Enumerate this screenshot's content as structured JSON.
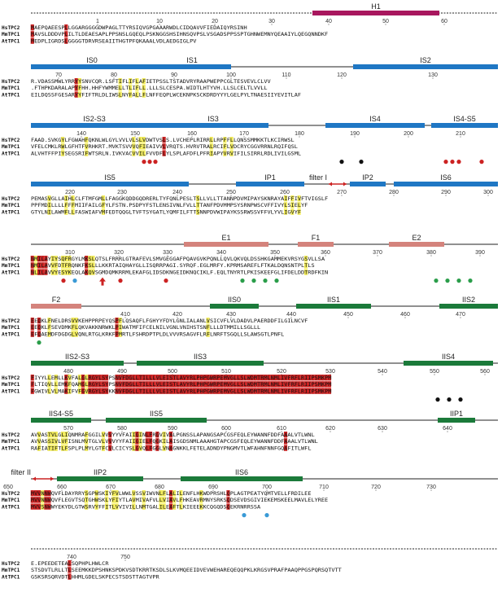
{
  "colors": {
    "domain1": "#1f77c4",
    "domain2": "#1b7a3a",
    "helix": "#a8175e",
    "extra": "#d4837c",
    "identical": "#cc2222",
    "similar": "#f2ec5a",
    "marker_red": "#cc2222",
    "marker_black": "#111111",
    "marker_green": "#2a9d4a",
    "marker_blue": "#3a9ad6",
    "filter_arrow": "#cc2222"
  },
  "sequences": [
    "HsTPC2",
    "MmTPC1",
    "AtTPC1"
  ],
  "blocks": [
    {
      "positions": [
        {
          "n": "1"
        },
        {
          "n": "10"
        },
        {
          "n": "20"
        },
        {
          "n": "30"
        },
        {
          "n": "40"
        },
        {
          "n": "50"
        },
        {
          "n": "60"
        }
      ],
      "features": [
        {
          "label": "H1",
          "kind": "helix"
        }
      ],
      "rows": [
        "MAEPQAEESPLLGGARGGGGDWPAGLTTYRSIQVGPGAAARWDLCIDQAVVFIEDAIQYRSINH",
        "MAVSLDDDVPLILTLDEAESAPLPPSNSLGQEQLPSKNGGSHSIHNSQVPSLVSGADSPPSSPTGHNWEMNYQEAAIYLQEGQNNDKF",
        "MEDPLIGRDSLGGGGTDRVRSEAIITHGTPFQKAAALVDLAEDGIGLPV"
      ],
      "markers": []
    },
    {
      "positions": [
        {
          "n": "70"
        },
        {
          "n": "80"
        },
        {
          "n": "90"
        },
        {
          "n": "100"
        },
        {
          "n": "110"
        },
        {
          "n": "120"
        },
        {
          "n": "130"
        }
      ],
      "features": [
        {
          "label": "IS0",
          "kind": "domain1"
        },
        {
          "label": "IS1",
          "kind": "domain1"
        },
        {
          "label": "IS2",
          "kind": "domain1"
        }
      ],
      "rows": [
        "R.VDASSMWLYRRYYSNVCQR.LSFTIFLIFLAFIETPSSLTSTADVRYRAAPWEPPCGLTESVEVLCLVV",
        ".FTHPKDARALAPYFHH.HHFYWMMELLTLIFLL.LLLSLCESPA.WIDTLHTYVH.LLSLCELTLVVLL",
        "EILDQSSFGESARYYFIFTRLDLIWSLNYFALLFLNFFEQPLWCEKNPKSCKDRDYYYLGELPYLTNAESIIYEVITLAF"
      ],
      "markers": []
    },
    {
      "positions": [
        {
          "n": "140"
        },
        {
          "n": "150"
        },
        {
          "n": "160"
        },
        {
          "n": "170"
        },
        {
          "n": "180"
        },
        {
          "n": "190"
        },
        {
          "n": "200"
        },
        {
          "n": "210"
        }
      ],
      "features": [
        {
          "label": "IS2-S3",
          "kind": "domain1"
        },
        {
          "label": "IS3",
          "kind": "domain1"
        },
        {
          "label": "IS4",
          "kind": "domain1"
        },
        {
          "label": "IS4-S5",
          "kind": "domain1"
        }
      ],
      "rows": [
        "FAAD.SVKGYLFGWAHFQKNLWLGYLVVLVLSLVDWTVSLS.LVCHEPLRIRRLLRPFFLLQNSSMMKKTLKCIRWSL",
        "VFELCMKLRWLGFHTFVRHKRT.MVKTSVVVQFIEAIVVLVRQTS.HVRVTRALRCIFLVDCRYCGGVRRNLRQIFQSL",
        "ALVHTFFPIYSEGSRIFWTSRLN.IVKVACVVILFVVDFLYLSPLAFDFLPFRIAPYVRVIFILSIRRLRDLIVILGSML"
      ],
      "markers": []
    },
    {
      "positions": [
        {
          "n": "220"
        },
        {
          "n": "230"
        },
        {
          "n": "240"
        },
        {
          "n": "250"
        },
        {
          "n": "260"
        },
        {
          "n": "270"
        },
        {
          "n": "280"
        },
        {
          "n": "290"
        },
        {
          "n": "300"
        }
      ],
      "features": [
        {
          "label": "IS5",
          "kind": "domain1"
        },
        {
          "label": "IP1",
          "kind": "domain1"
        },
        {
          "label": "filter I",
          "kind": "filter"
        },
        {
          "label": "IP2",
          "kind": "domain1"
        },
        {
          "label": "IS6",
          "kind": "domain1"
        }
      ],
      "rows": [
        "PEMASVGLLAIHLCLFTMFGMLLFAGGKQDDGQDRERLTYFQNLPESLTSLLVLLTTANNPDVMIPAYSKNRAYAIFFIVFTVIGSLF",
        "PPFMDILLLLFFFMIIFAILGFYLFSTN.PSDPYFSTLENSIVNLFVLLTTANFPDVMMPSYSRNPWSCVFFIVYLSIELYF",
        "GTYLNILAWMFLLFASWIAFVMFEDTQQGLTVFTSYGATLYQMFILFTTSNNPDVWIPAYKSSRWSSVFFVLYVLIGVYF"
      ],
      "markers": []
    },
    {
      "positions": [
        {
          "n": "310"
        },
        {
          "n": "320"
        },
        {
          "n": "330"
        },
        {
          "n": "340"
        },
        {
          "n": "350"
        },
        {
          "n": "360"
        },
        {
          "n": "370"
        },
        {
          "n": "380"
        },
        {
          "n": "390"
        }
      ],
      "features": [
        {
          "label": "E1",
          "kind": "extra"
        },
        {
          "label": "F1",
          "kind": "extra"
        },
        {
          "label": "E2",
          "kind": "extra"
        }
      ],
      "rows": [
        "NMILAYIYSQFRGYLMKSLQTSLFRRRLGTRAFEVLSMVGEGGAFPQAVGVKPQNLLQVLQKVQLDSSHKGAMMEKVRSYGSVLLSA",
        "NMILAVVFDTFRQNKFKSLLLKKRTAIQHAYGLLISQRRPAGI.SYRQF.EGLMRFY.KPRMSAREFLFTKALDQNSNTPLTLS",
        "NLILAVVYESYKEQLAKQVSGMDQMKRRMLEKAFGLIDSDKNGEIDKNQCIKLF.EQLTNYRTLPKISKEEFGLIFDELDDTRDFKIN"
      ],
      "markers": []
    },
    {
      "positions": [
        {
          "n": "410"
        },
        {
          "n": "420"
        },
        {
          "n": "430"
        },
        {
          "n": "440"
        },
        {
          "n": "450"
        },
        {
          "n": "460"
        },
        {
          "n": "470"
        }
      ],
      "features": [
        {
          "label": "F2",
          "kind": "extra"
        },
        {
          "label": "IIS0",
          "kind": "domain2"
        },
        {
          "label": "IIS1",
          "kind": "domain2"
        },
        {
          "label": "IIS2",
          "kind": "domain2"
        }
      ],
      "rows": [
        "EEQKLFNELDRSVVKEHPPRPEYQSPFLQSAQFLFGHYYFDYLGNLIALANLVSICVFLVLDADVLPAERDDFILGILNCVF",
        "EEQKLFSEVDMKFLQKVAKKNRWKLPIWATMFIFCELNILVGNLVNIHSTSNFLLLDTMMILLSGLLL",
        "EFQAEMDFDGDGLVQNLRTGLKRKFPMRTLFSHRDPTPLDLVVVRSAGVFLRFLNRFTSGQLLSLAWSGTLPNFL"
      ],
      "markers": []
    },
    {
      "positions": [
        {
          "n": "480"
        },
        {
          "n": "490"
        },
        {
          "n": "500"
        },
        {
          "n": "510"
        },
        {
          "n": "520"
        },
        {
          "n": "530"
        },
        {
          "n": "540"
        },
        {
          "n": "550"
        },
        {
          "n": "560"
        }
      ],
      "features": [
        {
          "label": "IIS2-S3",
          "kind": "domain2"
        },
        {
          "label": "IIS3",
          "kind": "domain2"
        },
        {
          "label": "IIS4",
          "kind": "domain2"
        }
      ],
      "rows": [
        "FIYYLLEMLLKVFALGLRGYLSYPSNVFDGLLTILLLVLEISTLAVYRLPHPGWRPEMVGLLSLWDMTRMLNMLIVFRFLRIIPSMKPM",
        "FLTIQVLLEMKFQAMGLRGYLSYPSNVFDGLLTILLLVLEISTLAVYRLPHPGWRPEMVGLLSLWDMTRMLNMLIVFRFLRIIPSMKPM",
        "FGWIVLVLMAKIFVFGVRGYLSYKKNVFDGLLTILLLVLEISTLAVYRLPHPGWRPEMVGLLSLWDMTRMLNMLIVFRFLRIIPSMKPM"
      ],
      "markers": []
    },
    {
      "positions": [
        {
          "n": "570"
        },
        {
          "n": "580"
        },
        {
          "n": "590"
        },
        {
          "n": "600"
        },
        {
          "n": "610"
        },
        {
          "n": "620"
        },
        {
          "n": "630"
        },
        {
          "n": "640"
        }
      ],
      "features": [
        {
          "label": "IIS4-S5",
          "kind": "domain2"
        },
        {
          "label": "IIS5",
          "kind": "domain2"
        },
        {
          "label": "IIP1",
          "kind": "domain2"
        }
      ],
      "rows": [
        "AVVASTVLGLIQNMRAFGGILVVVYYVFAIIGINLFRGVIVALPGNSSLAPANGSAPCGSFEQLEYWANNFDDFAAALVTLWNL",
        "AVVASSIVLVFISNLMVTGLVLVVVYYFAIIGIELFQGKILAISGDSNMLAAAHGTAPCGSFEQLEYWANNFDDFAAALVTLWNL",
        "RAFIATIFTLFSPLPLMYLGTFCVLCICYSLGVQLFGGLVNAGNKKLFETELADNDYPNGMVTLWFAHNFNNFGQAFITLWFL"
      ],
      "markers": []
    },
    {
      "positions": [
        {
          "n": "650"
        },
        {
          "n": "660"
        },
        {
          "n": "670"
        },
        {
          "n": "680"
        },
        {
          "n": "690"
        },
        {
          "n": "700"
        },
        {
          "n": "710"
        },
        {
          "n": "720"
        },
        {
          "n": "730"
        }
      ],
      "features": [
        {
          "label": "filter II",
          "kind": "filter"
        },
        {
          "label": "IIP2",
          "kind": "domain2"
        },
        {
          "label": "IIS6",
          "kind": "domain2"
        }
      ],
      "rows": [
        "MVVNNWQVFLDAYRRYSGPWSKIYFVLWWLVSSVIWVNLFLALILENFLHKWDPRSHLQPLAGTPEATYQMTVELLFRDILEE",
        "MVVNNWQVFLEGVTSQTGHWSKLYFIYTLAVMIVAFVLLVIAVLFHKEAVRMNYSRKSQDSEVDSGIVIEKEMSKEELMAVLELYREE",
        "MVVSNWWYEKYDLGTWSRVYFFITLVVIVILLNMTGALILEAFTLKIEEEKKCQGQDSQEKRNRRSSA"
      ],
      "markers": []
    },
    {
      "positions": [
        {
          "n": "740"
        },
        {
          "n": "750"
        }
      ],
      "features": [],
      "rows": [
        "E.EPEEDETEALSQPHPLHWLCR",
        "STSDVTLRLLTLSEEMKKDPSHNKSPDKVSDTKRRTKSDLSLKVMQEEIDVEVWEHAREQEQQPKLKRGSVPRAFPAAQPPGSPQRSQTVTT",
        "GSKSRSQRVDTLHHMLGDELSKPECSTSDSTTAGTVPR"
      ],
      "markers": []
    }
  ]
}
